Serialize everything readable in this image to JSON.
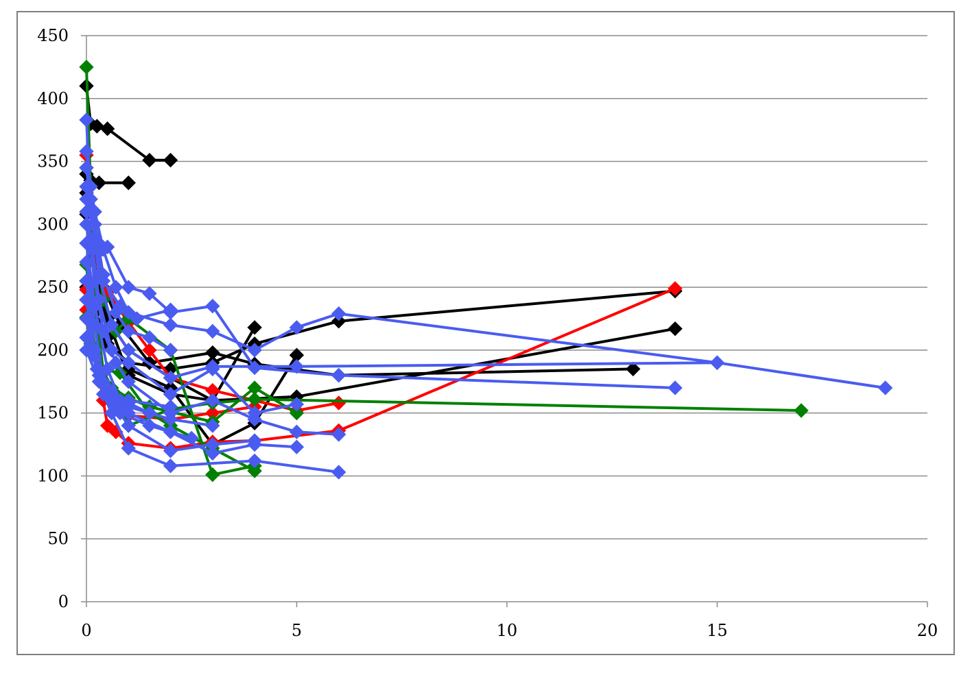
{
  "chart_data": {
    "type": "line",
    "title": "",
    "xlabel": "",
    "ylabel": "",
    "xlim": [
      0,
      20
    ],
    "ylim": [
      0,
      450
    ],
    "x_ticks": [
      "0",
      "5",
      "10",
      "15",
      "20"
    ],
    "y_ticks": [
      "0",
      "50",
      "100",
      "150",
      "200",
      "250",
      "300",
      "350",
      "400",
      "450"
    ],
    "grid": "horizontal",
    "legend": "none",
    "marker": "diamond",
    "series": [
      {
        "color": "#000000",
        "points": [
          [
            0,
            410
          ],
          [
            0.1,
            380
          ],
          [
            0.25,
            378
          ],
          [
            0.5,
            376
          ],
          [
            1.5,
            351
          ],
          [
            2,
            351
          ]
        ]
      },
      {
        "color": "#000000",
        "points": [
          [
            0,
            340
          ],
          [
            0.1,
            335
          ],
          [
            0.3,
            333
          ],
          [
            1,
            333
          ]
        ]
      },
      {
        "color": "#000000",
        "points": [
          [
            0,
            325
          ],
          [
            0.15,
            300
          ],
          [
            0.3,
            262
          ],
          [
            0.5,
            225
          ],
          [
            1,
            180
          ],
          [
            2,
            165
          ],
          [
            3,
            160
          ],
          [
            5,
            163
          ],
          [
            14,
            217
          ]
        ]
      },
      {
        "color": "#000000",
        "points": [
          [
            0,
            308
          ],
          [
            0.2,
            275
          ],
          [
            0.4,
            250
          ],
          [
            0.8,
            220
          ],
          [
            1.5,
            190
          ],
          [
            3,
            198
          ],
          [
            4,
            189
          ],
          [
            6,
            180
          ],
          [
            13,
            185
          ]
        ]
      },
      {
        "color": "#000000",
        "points": [
          [
            0,
            255
          ],
          [
            0.2,
            245
          ],
          [
            0.4,
            230
          ],
          [
            1,
            200
          ],
          [
            2,
            178
          ],
          [
            3,
            160
          ],
          [
            4,
            218
          ]
        ]
      },
      {
        "color": "#000000",
        "points": [
          [
            0,
            240
          ],
          [
            0.2,
            230
          ],
          [
            0.5,
            210
          ],
          [
            1,
            185
          ],
          [
            2,
            170
          ],
          [
            3,
            125
          ],
          [
            4,
            142
          ],
          [
            5,
            196
          ]
        ]
      },
      {
        "color": "#000000",
        "points": [
          [
            0,
            250
          ],
          [
            0.5,
            205
          ],
          [
            1,
            190
          ],
          [
            2,
            185
          ],
          [
            3,
            190
          ],
          [
            4,
            205
          ],
          [
            6,
            223
          ],
          [
            14,
            247
          ]
        ]
      },
      {
        "color": "#ff0000",
        "points": [
          [
            0,
            355
          ],
          [
            0.1,
            320
          ],
          [
            0.2,
            285
          ],
          [
            0.3,
            258
          ],
          [
            0.5,
            246
          ],
          [
            1,
            222
          ],
          [
            1.5,
            200
          ],
          [
            2,
            178
          ],
          [
            3,
            168
          ],
          [
            5,
            152
          ],
          [
            6,
            158
          ]
        ]
      },
      {
        "color": "#ff0000",
        "points": [
          [
            0,
            248
          ],
          [
            0.2,
            200
          ],
          [
            0.4,
            160
          ],
          [
            0.5,
            140
          ],
          [
            0.7,
            135
          ],
          [
            1,
            126
          ],
          [
            2,
            122
          ],
          [
            3,
            127
          ],
          [
            4,
            128
          ],
          [
            6,
            136
          ],
          [
            14,
            249
          ]
        ]
      },
      {
        "color": "#ff0000",
        "points": [
          [
            0,
            232
          ],
          [
            0.3,
            185
          ],
          [
            0.6,
            160
          ],
          [
            1,
            148
          ],
          [
            2,
            145
          ],
          [
            3,
            150
          ],
          [
            4,
            155
          ]
        ]
      },
      {
        "color": "#008000",
        "points": [
          [
            0,
            425
          ],
          [
            0.1,
            330
          ],
          [
            0.2,
            240
          ],
          [
            0.4,
            183
          ],
          [
            0.7,
            165
          ],
          [
            1,
            140
          ],
          [
            2,
            153
          ],
          [
            3,
            158
          ],
          [
            4,
            161
          ],
          [
            17,
            152
          ]
        ]
      },
      {
        "color": "#008000",
        "points": [
          [
            0,
            345
          ],
          [
            0.2,
            290
          ],
          [
            0.4,
            240
          ],
          [
            0.7,
            215
          ],
          [
            1,
            225
          ],
          [
            2,
            200
          ],
          [
            3,
            101
          ],
          [
            4,
            108
          ]
        ]
      },
      {
        "color": "#008000",
        "points": [
          [
            0,
            268
          ],
          [
            0.1,
            228
          ],
          [
            0.3,
            180
          ],
          [
            0.6,
            170
          ],
          [
            1,
            162
          ],
          [
            1.5,
            155
          ],
          [
            3,
            143
          ],
          [
            4,
            170
          ],
          [
            5,
            150
          ]
        ]
      },
      {
        "color": "#008000",
        "points": [
          [
            0,
            226
          ],
          [
            0.1,
            205
          ],
          [
            0.3,
            185
          ],
          [
            0.8,
            182
          ],
          [
            1.5,
            150
          ],
          [
            2,
            140
          ],
          [
            3,
            122
          ],
          [
            4,
            104
          ]
        ]
      },
      {
        "color": "#4a5cf0",
        "points": [
          [
            0,
            383
          ],
          [
            0.1,
            320
          ],
          [
            0.2,
            300
          ],
          [
            0.3,
            285
          ],
          [
            0.5,
            282
          ],
          [
            1,
            250
          ],
          [
            1.5,
            245
          ],
          [
            2,
            230
          ],
          [
            3,
            235
          ],
          [
            4,
            186
          ],
          [
            6,
            180
          ],
          [
            14,
            170
          ]
        ]
      },
      {
        "color": "#4a5cf0",
        "points": [
          [
            0,
            358
          ],
          [
            0.1,
            330
          ],
          [
            0.2,
            310
          ],
          [
            0.4,
            280
          ],
          [
            0.7,
            250
          ],
          [
            1,
            230
          ],
          [
            2,
            220
          ],
          [
            3,
            215
          ],
          [
            4,
            200
          ],
          [
            5,
            218
          ],
          [
            6,
            229
          ],
          [
            15,
            190
          ],
          [
            19,
            170
          ]
        ]
      },
      {
        "color": "#4a5cf0",
        "points": [
          [
            0,
            345
          ],
          [
            0.15,
            300
          ],
          [
            0.3,
            260
          ],
          [
            0.6,
            220
          ],
          [
            1,
            200
          ],
          [
            2,
            178
          ],
          [
            3,
            187
          ],
          [
            5,
            187
          ],
          [
            15,
            190
          ]
        ]
      },
      {
        "color": "#4a5cf0",
        "points": [
          [
            0,
            310
          ],
          [
            0.15,
            280
          ],
          [
            0.3,
            240
          ],
          [
            0.6,
            200
          ],
          [
            1,
            190
          ],
          [
            2,
            165
          ],
          [
            3,
            185
          ],
          [
            4,
            150
          ],
          [
            5,
            157
          ]
        ]
      },
      {
        "color": "#4a5cf0",
        "points": [
          [
            0,
            300
          ],
          [
            0.2,
            255
          ],
          [
            0.4,
            215
          ],
          [
            0.7,
            190
          ],
          [
            1,
            175
          ],
          [
            2,
            150
          ],
          [
            3,
            160
          ],
          [
            4,
            145
          ],
          [
            5,
            135
          ],
          [
            6,
            133
          ]
        ]
      },
      {
        "color": "#4a5cf0",
        "points": [
          [
            0,
            285
          ],
          [
            0.2,
            235
          ],
          [
            0.5,
            185
          ],
          [
            0.8,
            160
          ],
          [
            1,
            150
          ],
          [
            2,
            135
          ],
          [
            3,
            118
          ],
          [
            4,
            125
          ],
          [
            5,
            123
          ]
        ]
      },
      {
        "color": "#4a5cf0",
        "points": [
          [
            0,
            270
          ],
          [
            0.2,
            220
          ],
          [
            0.4,
            175
          ],
          [
            0.7,
            155
          ],
          [
            1,
            140
          ],
          [
            2,
            120
          ],
          [
            3,
            125
          ],
          [
            4,
            128
          ]
        ]
      },
      {
        "color": "#4a5cf0",
        "points": [
          [
            0,
            255
          ],
          [
            0.2,
            200
          ],
          [
            0.4,
            165
          ],
          [
            0.6,
            150
          ],
          [
            1,
            122
          ],
          [
            2,
            108
          ],
          [
            4,
            112
          ],
          [
            6,
            103
          ]
        ]
      },
      {
        "color": "#4a5cf0",
        "points": [
          [
            0,
            240
          ],
          [
            0.2,
            195
          ],
          [
            0.5,
            165
          ],
          [
            0.8,
            150
          ],
          [
            1.5,
            140
          ],
          [
            2.5,
            130
          ]
        ]
      },
      {
        "color": "#4a5cf0",
        "points": [
          [
            0,
            225
          ],
          [
            0.25,
            185
          ],
          [
            0.5,
            170
          ],
          [
            1,
            155
          ],
          [
            2,
            145
          ],
          [
            3,
            140
          ]
        ]
      },
      {
        "color": "#4a5cf0",
        "points": [
          [
            0,
            210
          ],
          [
            0.3,
            180
          ],
          [
            0.6,
            165
          ],
          [
            1,
            160
          ],
          [
            2,
            155
          ]
        ]
      },
      {
        "color": "#4a5cf0",
        "points": [
          [
            0,
            200
          ],
          [
            0.3,
            175
          ],
          [
            0.6,
            160
          ],
          [
            1,
            158
          ],
          [
            1.5,
            150
          ]
        ]
      },
      {
        "color": "#4a5cf0",
        "points": [
          [
            0,
            330
          ],
          [
            0.2,
            300
          ],
          [
            0.4,
            260
          ],
          [
            0.7,
            230
          ],
          [
            1,
            215
          ],
          [
            1.5,
            210
          ],
          [
            2,
            200
          ]
        ]
      },
      {
        "color": "#4a5cf0",
        "points": [
          [
            0,
            320
          ],
          [
            0.2,
            290
          ],
          [
            0.4,
            255
          ],
          [
            0.8,
            235
          ],
          [
            1.2,
            225
          ],
          [
            2,
            232
          ]
        ]
      }
    ]
  }
}
